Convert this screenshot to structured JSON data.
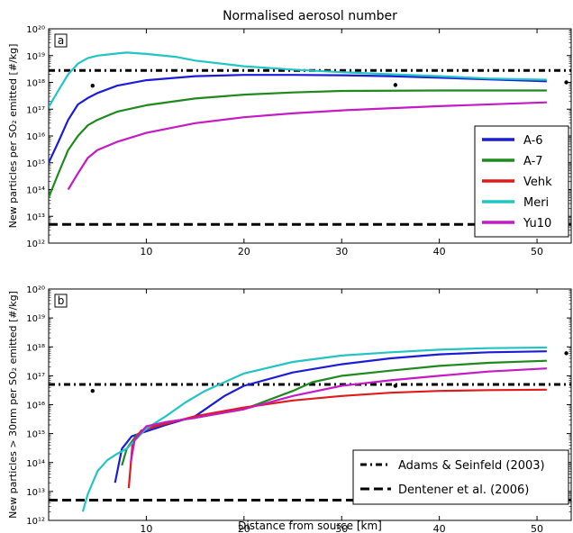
{
  "figure": {
    "title": "Normalised aerosol number",
    "xlabel": "Distance from source [km]"
  },
  "legend_series": {
    "title": "",
    "items": [
      {
        "name": "A-6",
        "color": "#1c1cd6"
      },
      {
        "name": "A-7",
        "color": "#1e8a1e"
      },
      {
        "name": "Vehk",
        "color": "#e01b1b"
      },
      {
        "name": "Meri",
        "color": "#22c4c4"
      },
      {
        "name": "Yu10",
        "color": "#c41bc4"
      }
    ]
  },
  "legend_refs": {
    "items": [
      {
        "name": "Adams & Seinfeld (2003)",
        "style": "dashdot"
      },
      {
        "name": "Dentener et al. (2006)",
        "style": "dashed"
      }
    ]
  },
  "chart_data": [
    {
      "type": "line",
      "panel_label": "a",
      "ylabel": "New particles per SO₂ emitted [#/kg]",
      "yscale": "log",
      "xlim": [
        0,
        53.5
      ],
      "ylim": [
        1000000000000.0,
        1e+20
      ],
      "xticks": [
        10,
        20,
        30,
        40,
        50
      ],
      "yticks": [
        {
          "value": 1000000000000.0,
          "label": "10¹²"
        },
        {
          "value": 10000000000000.0,
          "label": "10¹³"
        },
        {
          "value": 100000000000000.0,
          "label": "10¹⁴"
        },
        {
          "value": 1000000000000000.0,
          "label": "10¹⁵"
        },
        {
          "value": 1e+16,
          "label": "10¹⁶"
        },
        {
          "value": 1e+17,
          "label": "10¹⁷"
        },
        {
          "value": 1e+18,
          "label": "10¹⁸"
        },
        {
          "value": 1e+19,
          "label": "10¹⁹"
        },
        {
          "value": 1e+20,
          "label": "10²⁰"
        }
      ],
      "grid": false,
      "series": [
        {
          "name": "A-6",
          "color": "#1c1cd6",
          "points": [
            [
              0,
              1000000000000000.0
            ],
            [
              1,
              6000000000000000.0
            ],
            [
              2,
              4e+16
            ],
            [
              3,
              1.5e+17
            ],
            [
              4,
              2.6e+17
            ],
            [
              5,
              4e+17
            ],
            [
              7,
              7.5e+17
            ],
            [
              10,
              1.2e+18
            ],
            [
              15,
              1.7e+18
            ],
            [
              20,
              1.9e+18
            ],
            [
              25,
              1.9e+18
            ],
            [
              30,
              1.85e+18
            ],
            [
              35,
              1.7e+18
            ],
            [
              40,
              1.5e+18
            ],
            [
              45,
              1.3e+18
            ],
            [
              51,
              1.1e+18
            ]
          ]
        },
        {
          "name": "A-7",
          "color": "#1e8a1e",
          "points": [
            [
              0,
              50000000000000.0
            ],
            [
              1,
              400000000000000.0
            ],
            [
              2,
              3000000000000000.0
            ],
            [
              3,
              1e+16
            ],
            [
              4,
              2.5e+16
            ],
            [
              5,
              4e+16
            ],
            [
              7,
              8e+16
            ],
            [
              10,
              1.4e+17
            ],
            [
              15,
              2.5e+17
            ],
            [
              20,
              3.5e+17
            ],
            [
              25,
              4.2e+17
            ],
            [
              30,
              4.8e+17
            ],
            [
              40,
              5e+17
            ],
            [
              51,
              5e+17
            ]
          ]
        },
        {
          "name": "Meri",
          "color": "#22c4c4",
          "points": [
            [
              0,
              1.2e+17
            ],
            [
              1,
              5e+17
            ],
            [
              2,
              2e+18
            ],
            [
              3,
              5e+18
            ],
            [
              4,
              8e+18
            ],
            [
              5,
              1e+19
            ],
            [
              7,
              1.2e+19
            ],
            [
              8,
              1.3e+19
            ],
            [
              10,
              1.15e+19
            ],
            [
              13,
              9e+18
            ],
            [
              15,
              6.5e+18
            ],
            [
              20,
              4e+18
            ],
            [
              25,
              3e+18
            ],
            [
              30,
              2.4e+18
            ],
            [
              35,
              2e+18
            ],
            [
              40,
              1.7e+18
            ],
            [
              45,
              1.4e+18
            ],
            [
              51,
              1.25e+18
            ]
          ]
        },
        {
          "name": "Yu10",
          "color": "#c41bc4",
          "points": [
            [
              2,
              100000000000000.0
            ],
            [
              3,
              400000000000000.0
            ],
            [
              4,
              1500000000000000.0
            ],
            [
              5,
              3000000000000000.0
            ],
            [
              7,
              6000000000000000.0
            ],
            [
              10,
              1.3e+16
            ],
            [
              15,
              3e+16
            ],
            [
              20,
              5e+16
            ],
            [
              25,
              7e+16
            ],
            [
              30,
              9e+16
            ],
            [
              40,
              1.3e+17
            ],
            [
              51,
              1.8e+17
            ]
          ]
        }
      ],
      "reference_lines": [
        {
          "name": "Adams & Seinfeld (2003)",
          "style": "dashdot",
          "y": 2.8e+18
        },
        {
          "name": "Dentener et al. (2006)",
          "style": "dashed",
          "y": 5000000000000.0
        }
      ],
      "markers": [
        [
          4.5,
          7.5e+17
        ],
        [
          35.5,
          8e+17
        ],
        [
          53,
          1e+18
        ]
      ]
    },
    {
      "type": "line",
      "panel_label": "b",
      "ylabel": "New particles > 30nm per SO₂ emitted [#/kg]",
      "yscale": "log",
      "xlim": [
        0,
        53.5
      ],
      "ylim": [
        1000000000000.0,
        1e+20
      ],
      "xticks": [
        10,
        20,
        30,
        40,
        50
      ],
      "yticks": [
        {
          "value": 1000000000000.0,
          "label": "10¹²"
        },
        {
          "value": 10000000000000.0,
          "label": "10¹³"
        },
        {
          "value": 100000000000000.0,
          "label": "10¹⁴"
        },
        {
          "value": 1000000000000000.0,
          "label": "10¹⁵"
        },
        {
          "value": 1e+16,
          "label": "10¹⁶"
        },
        {
          "value": 1e+17,
          "label": "10¹⁷"
        },
        {
          "value": 1e+18,
          "label": "10¹⁸"
        },
        {
          "value": 1e+19,
          "label": "10¹⁹"
        },
        {
          "value": 1e+20,
          "label": "10²⁰"
        }
      ],
      "grid": false,
      "series": [
        {
          "name": "A-6",
          "color": "#1c1cd6",
          "points": [
            [
              6.8,
              20000000000000.0
            ],
            [
              7.5,
              300000000000000.0
            ],
            [
              8.5,
              800000000000000.0
            ],
            [
              10,
              1200000000000000.0
            ],
            [
              12,
              2000000000000000.0
            ],
            [
              15,
              4000000000000000.0
            ],
            [
              18,
              2e+16
            ],
            [
              20,
              4.5e+16
            ],
            [
              25,
              1.3e+17
            ],
            [
              30,
              2.5e+17
            ],
            [
              35,
              4e+17
            ],
            [
              40,
              5.5e+17
            ],
            [
              45,
              6.5e+17
            ],
            [
              51,
              7e+17
            ]
          ]
        },
        {
          "name": "A-7",
          "color": "#1e8a1e",
          "points": [
            [
              7.5,
              80000000000000.0
            ],
            [
              8,
              300000000000000.0
            ],
            [
              9,
              900000000000000.0
            ],
            [
              10,
              1500000000000000.0
            ],
            [
              12,
              2500000000000000.0
            ],
            [
              15,
              3500000000000000.0
            ],
            [
              20,
              7000000000000000.0
            ],
            [
              25,
              3e+16
            ],
            [
              27,
              6e+16
            ],
            [
              30,
              1e+17
            ],
            [
              35,
              1.5e+17
            ],
            [
              40,
              2.2e+17
            ],
            [
              45,
              2.8e+17
            ],
            [
              51,
              3.3e+17
            ]
          ]
        },
        {
          "name": "Vehk",
          "color": "#e01b1b",
          "points": [
            [
              8.2,
              13000000000000.0
            ],
            [
              8.6,
              500000000000000.0
            ],
            [
              9.5,
              1300000000000000.0
            ],
            [
              11,
              1800000000000000.0
            ],
            [
              15,
              4000000000000000.0
            ],
            [
              20,
              8000000000000000.0
            ],
            [
              25,
              1.4e+16
            ],
            [
              30,
              2e+16
            ],
            [
              35,
              2.6e+16
            ],
            [
              40,
              3e+16
            ],
            [
              45,
              3.2e+16
            ],
            [
              51,
              3.3e+16
            ]
          ]
        },
        {
          "name": "Meri",
          "color": "#22c4c4",
          "points": [
            [
              3.5,
              2000000000000.0
            ],
            [
              4,
              8000000000000.0
            ],
            [
              5,
              50000000000000.0
            ],
            [
              6,
              120000000000000.0
            ],
            [
              7,
              200000000000000.0
            ],
            [
              8,
              300000000000000.0
            ],
            [
              10,
              1500000000000000.0
            ],
            [
              12,
              4000000000000000.0
            ],
            [
              14,
              1.2e+16
            ],
            [
              16,
              3e+16
            ],
            [
              18,
              6e+16
            ],
            [
              20,
              1.2e+17
            ],
            [
              25,
              3e+17
            ],
            [
              30,
              5e+17
            ],
            [
              35,
              6.5e+17
            ],
            [
              40,
              8e+17
            ],
            [
              45,
              9e+17
            ],
            [
              51,
              9.5e+17
            ]
          ]
        },
        {
          "name": "Yu10",
          "color": "#c41bc4",
          "points": [
            [
              8.4,
              100000000000000.0
            ],
            [
              8.8,
              600000000000000.0
            ],
            [
              10,
              1800000000000000.0
            ],
            [
              12,
              2500000000000000.0
            ],
            [
              15,
              3500000000000000.0
            ],
            [
              20,
              7000000000000000.0
            ],
            [
              25,
              2e+16
            ],
            [
              30,
              4.5e+16
            ],
            [
              35,
              7e+16
            ],
            [
              40,
              1e+17
            ],
            [
              45,
              1.4e+17
            ],
            [
              51,
              1.8e+17
            ]
          ]
        }
      ],
      "reference_lines": [
        {
          "name": "Adams & Seinfeld (2003)",
          "style": "dashdot",
          "y": 5e+16
        },
        {
          "name": "Dentener et al. (2006)",
          "style": "dashed",
          "y": 5000000000000.0
        }
      ],
      "markers": [
        [
          4.5,
          3e+16
        ],
        [
          35.5,
          4.5e+16
        ],
        [
          53,
          6e+17
        ]
      ]
    }
  ]
}
